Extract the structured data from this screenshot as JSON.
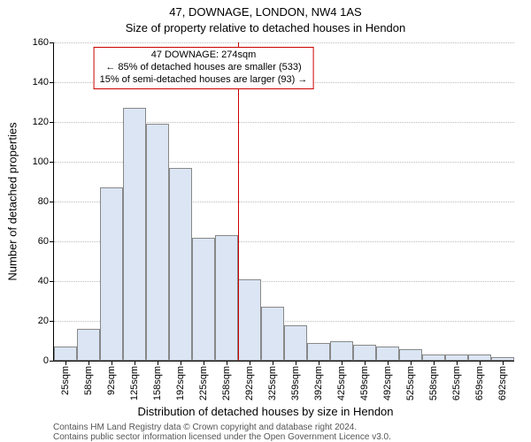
{
  "meta": {
    "title_line1": "47, DOWNAGE, LONDON, NW4 1AS",
    "title_line2": "Size of property relative to detached houses in Hendon",
    "ylabel": "Number of detached properties",
    "xlabel": "Distribution of detached houses by size in Hendon",
    "footer_line1": "Contains HM Land Registry data © Crown copyright and database right 2024.",
    "footer_line2": "Contains public sector information licensed under the Open Government Licence v3.0."
  },
  "chart": {
    "type": "histogram",
    "background_color": "#ffffff",
    "bar_fill": "#dbe5f4",
    "bar_border": "#888888",
    "grid_color": "#bbbbbb",
    "axis_color": "#000000",
    "ylim": [
      0,
      160
    ],
    "ytick_step": 20,
    "yticks": [
      0,
      20,
      40,
      60,
      80,
      100,
      120,
      140,
      160
    ],
    "categories": [
      "25sqm",
      "58sqm",
      "92sqm",
      "125sqm",
      "158sqm",
      "192sqm",
      "225sqm",
      "258sqm",
      "292sqm",
      "325sqm",
      "359sqm",
      "392sqm",
      "425sqm",
      "459sqm",
      "492sqm",
      "525sqm",
      "558sqm",
      "625sqm",
      "659sqm",
      "692sqm"
    ],
    "values": [
      7,
      16,
      87,
      127,
      119,
      97,
      62,
      63,
      41,
      27,
      18,
      9,
      10,
      8,
      7,
      6,
      3,
      3,
      3,
      2
    ],
    "bar_width_ratio": 1.0,
    "reference_line": {
      "category_index_between": [
        7,
        8
      ],
      "fraction": 0.5,
      "color": "#cc0000"
    },
    "annotation": {
      "lines": [
        "47 DOWNAGE: 274sqm",
        "← 85% of detached houses are smaller (533)",
        "15% of semi-detached houses are larger (93) →"
      ],
      "border_color": "#cc0000",
      "top_fraction_from_top": 0.015,
      "center_x_category": 6.0
    },
    "title_fontsize": 13,
    "label_fontsize": 13,
    "tick_fontsize": 11
  }
}
